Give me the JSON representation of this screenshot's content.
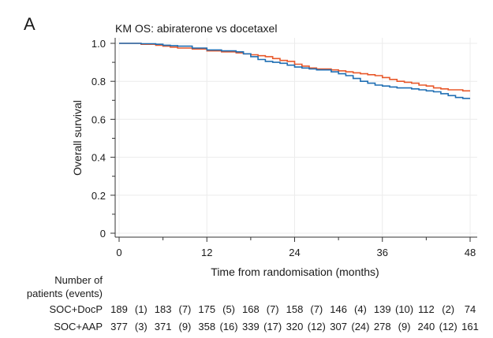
{
  "panel_label": "A",
  "chart_data": {
    "type": "line",
    "subtype": "kaplan-meier",
    "title": "KM OS: abiraterone vs docetaxel",
    "xlabel": "Time from randomisation (months)",
    "ylabel": "Overall survival",
    "xlim": [
      0,
      48
    ],
    "ylim": [
      0,
      1.0
    ],
    "xticks": [
      0,
      12,
      24,
      36,
      48
    ],
    "yticks": [
      0,
      0.2,
      0.4,
      0.6,
      0.8,
      1.0
    ],
    "ytick_labels": [
      "0",
      "0.2",
      "0.4",
      "0.6",
      "0.8",
      "1.0"
    ],
    "grid": true,
    "series": [
      {
        "name": "SOC+DocP",
        "color": "#e8582a",
        "x": [
          0,
          3,
          5,
          6,
          7,
          8,
          10,
          12,
          14,
          16,
          17,
          18,
          19,
          20,
          21,
          22,
          23,
          24,
          25,
          26,
          27,
          28,
          29,
          30,
          31,
          32,
          33,
          34,
          35,
          36,
          37,
          38,
          39,
          40,
          41,
          42,
          43,
          44,
          45,
          46,
          47,
          48
        ],
        "y": [
          1.0,
          0.995,
          0.99,
          0.985,
          0.98,
          0.975,
          0.97,
          0.96,
          0.955,
          0.95,
          0.945,
          0.94,
          0.935,
          0.93,
          0.92,
          0.91,
          0.905,
          0.89,
          0.88,
          0.87,
          0.865,
          0.865,
          0.86,
          0.855,
          0.85,
          0.845,
          0.84,
          0.835,
          0.83,
          0.82,
          0.81,
          0.8,
          0.795,
          0.79,
          0.78,
          0.775,
          0.765,
          0.76,
          0.755,
          0.755,
          0.75,
          0.75
        ]
      },
      {
        "name": "SOC+AAP",
        "color": "#1f6eb3",
        "x": [
          0,
          3,
          5,
          6,
          7,
          8,
          10,
          12,
          14,
          16,
          17,
          18,
          19,
          20,
          21,
          22,
          23,
          24,
          25,
          26,
          27,
          28,
          29,
          30,
          31,
          32,
          33,
          34,
          35,
          36,
          37,
          38,
          39,
          40,
          41,
          42,
          43,
          44,
          45,
          46,
          47,
          48
        ],
        "y": [
          1.0,
          0.998,
          0.995,
          0.99,
          0.988,
          0.985,
          0.975,
          0.965,
          0.96,
          0.955,
          0.945,
          0.93,
          0.915,
          0.905,
          0.9,
          0.895,
          0.885,
          0.875,
          0.87,
          0.865,
          0.86,
          0.86,
          0.85,
          0.84,
          0.83,
          0.815,
          0.8,
          0.79,
          0.78,
          0.775,
          0.77,
          0.765,
          0.765,
          0.76,
          0.755,
          0.75,
          0.745,
          0.735,
          0.725,
          0.715,
          0.71,
          0.71
        ]
      }
    ],
    "risk_table": {
      "header_line1": "Number of",
      "header_line2": "patients (events)",
      "rows": [
        {
          "label": "SOC+DocP",
          "numbers": [
            "189",
            "183",
            "175",
            "168",
            "158",
            "146",
            "139",
            "112",
            "74"
          ],
          "events": [
            "(1)",
            "(7)",
            "(5)",
            "(7)",
            "(7)",
            "(4)",
            "(10)",
            "(2)"
          ]
        },
        {
          "label": "SOC+AAP",
          "numbers": [
            "377",
            "371",
            "358",
            "339",
            "320",
            "307",
            "278",
            "240",
            "161"
          ],
          "events": [
            "(3)",
            "(9)",
            "(16)",
            "(17)",
            "(12)",
            "(24)",
            "(9)",
            "(12)"
          ]
        }
      ]
    }
  }
}
